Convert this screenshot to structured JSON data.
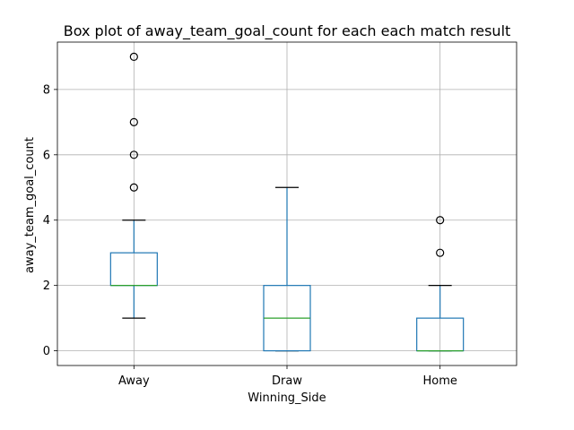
{
  "chart_data": {
    "type": "box",
    "title": "Box plot of away_team_goal_count for each each match result",
    "xlabel": "Winning_Side",
    "ylabel": "away_team_goal_count",
    "ylim": [
      -0.45,
      9.45
    ],
    "yticks": [
      0,
      2,
      4,
      6,
      8
    ],
    "grid": true,
    "categories": [
      "Away",
      "Draw",
      "Home"
    ],
    "boxes": [
      {
        "category": "Away",
        "whisker_low": 1,
        "q1": 2,
        "median": 2,
        "q3": 3,
        "whisker_high": 4,
        "outliers": [
          5,
          6,
          7,
          9
        ]
      },
      {
        "category": "Draw",
        "whisker_low": 0,
        "q1": 0,
        "median": 1,
        "q3": 2,
        "whisker_high": 5,
        "outliers": []
      },
      {
        "category": "Home",
        "whisker_low": 0,
        "q1": 0,
        "median": 0,
        "q3": 1,
        "whisker_high": 2,
        "outliers": [
          3,
          4
        ]
      }
    ],
    "colors": {
      "box": "#1f77b4",
      "median": "#2ca02c",
      "grid": "#b0b0b0",
      "outlier_edge": "#000000"
    }
  }
}
